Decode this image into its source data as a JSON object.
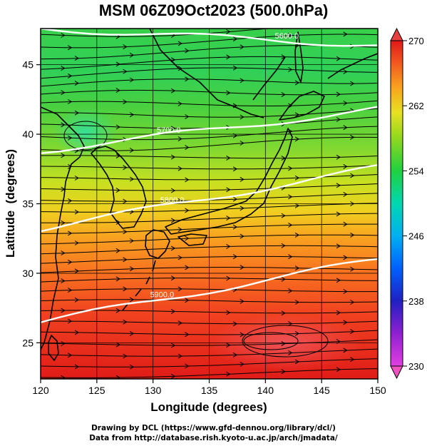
{
  "title": "MSM 06Z09Oct2023 (500.0hPa)",
  "x_axis": {
    "label": "Longitude (degrees)",
    "min": 120,
    "max": 150,
    "ticks": [
      "120",
      "125",
      "130",
      "135",
      "140",
      "145",
      "150"
    ]
  },
  "y_axis": {
    "label": "Latitude  (degrees)",
    "min": 22.4,
    "max": 47.6,
    "ticks": [
      "25",
      "30",
      "35",
      "40",
      "45"
    ]
  },
  "colorbar": {
    "min": 230,
    "max": 270,
    "ticks": [
      "230",
      "238",
      "246",
      "254",
      "262",
      "270"
    ],
    "colors": [
      "#e040e0",
      "#a020d0",
      "#3020c0",
      "#0040ff",
      "#0090ff",
      "#00d0e0",
      "#00d890",
      "#10d040",
      "#50d020",
      "#a0e020",
      "#e8e820",
      "#f8c020",
      "#f89020",
      "#f86020",
      "#f03020",
      "#e01818"
    ]
  },
  "contours": [
    {
      "label": "5600.0",
      "lat_at_west": 47.6,
      "lat_at_east": 46.4
    },
    {
      "label": "5700.0",
      "lat_at_west": 38.8,
      "lat_at_east": 41.8
    },
    {
      "label": "5800.0",
      "lat_at_west": 33.2,
      "lat_at_east": 37.6
    },
    {
      "label": "5900.0",
      "lat_at_west": 26.5,
      "lat_at_east": 31.0
    }
  ],
  "field_description_colors": {
    "warm": "#e82818",
    "cool": "#30d050"
  },
  "credits": {
    "line1": "Drawing by DCL (https://www.gfd-dennou.org/library/dcl/)",
    "line2": "Data from http://database.rish.kyoto-u.ac.jp/arch/jmadata/"
  }
}
